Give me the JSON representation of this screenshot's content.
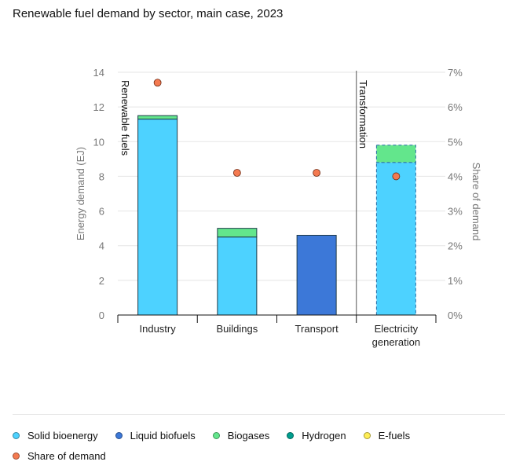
{
  "chart_data": {
    "type": "bar",
    "title": "Renewable fuel demand by sector, main case, 2023",
    "categories": [
      "Industry",
      "Buildings",
      "Transport",
      "Electricity generation"
    ],
    "category_lines": [
      [
        "Industry"
      ],
      [
        "Buildings"
      ],
      [
        "Transport"
      ],
      [
        "Electricity",
        "generation"
      ]
    ],
    "stacked": true,
    "series": [
      {
        "name": "Solid bioenergy",
        "color": "#4dd2ff",
        "values": [
          11.3,
          4.5,
          0,
          8.8
        ]
      },
      {
        "name": "Liquid biofuels",
        "color": "#3c78d8",
        "values": [
          0,
          0,
          4.6,
          0
        ]
      },
      {
        "name": "Biogases",
        "color": "#63e68c",
        "values": [
          0.2,
          0.5,
          0,
          1.0
        ]
      },
      {
        "name": "Hydrogen",
        "color": "#009e8e",
        "values": [
          0,
          0,
          0,
          0
        ]
      },
      {
        "name": "E-fuels",
        "color": "#ffee55",
        "values": [
          0,
          0,
          0,
          0
        ]
      }
    ],
    "dashed_categories": [
      "Electricity generation"
    ],
    "secondary_series": {
      "name": "Share of demand",
      "color": "#f47a50",
      "values": [
        6.7,
        4.1,
        4.1,
        4.0
      ],
      "unit": "%"
    },
    "ylabel": "Energy demand (EJ)",
    "ylim": [
      0,
      14
    ],
    "yticks": [
      0,
      2,
      4,
      6,
      8,
      10,
      12,
      14
    ],
    "y2label": "Share of demand",
    "y2lim": [
      0,
      7
    ],
    "y2ticks": [
      "0%",
      "1%",
      "2%",
      "3%",
      "4%",
      "5%",
      "6%",
      "7%"
    ],
    "annotations": [
      {
        "text": "Renewable fuels",
        "group": "left"
      },
      {
        "text": "Transformation",
        "group": "right"
      }
    ],
    "grid": true,
    "legend": "bottom"
  }
}
